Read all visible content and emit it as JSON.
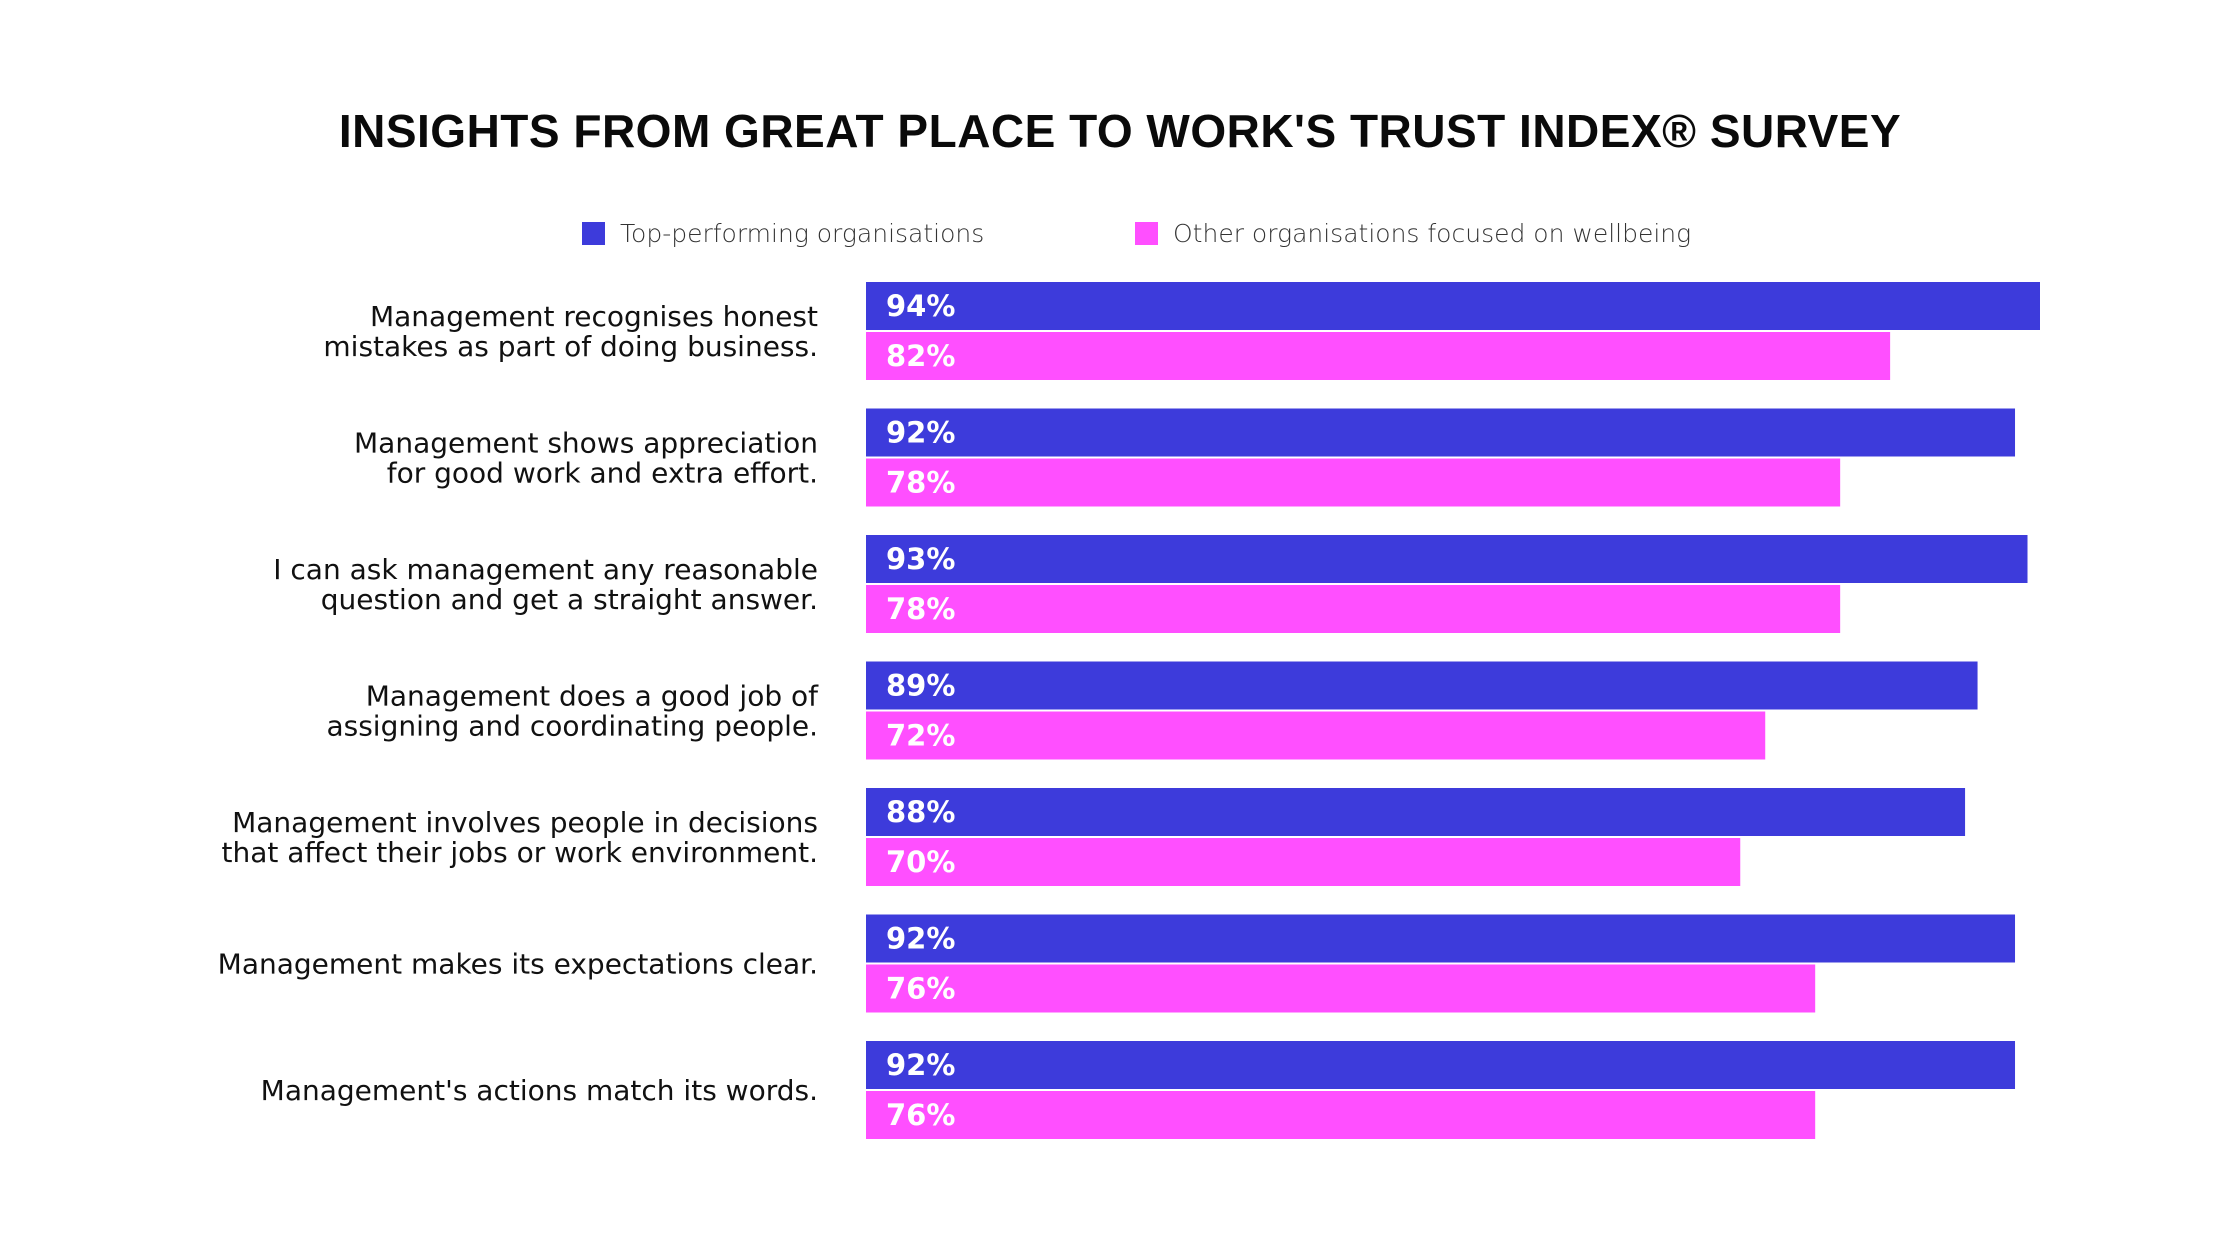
{
  "chart_data": {
    "type": "bar",
    "orientation": "horizontal",
    "title": "INSIGHTS FROM GREAT PLACE TO WORK'S TRUST INDEX® SURVEY",
    "xlabel": "",
    "ylabel": "",
    "xlim": [
      0,
      100
    ],
    "grid": false,
    "legend_position": "top-center",
    "categories": [
      [
        "Management recognises honest",
        "mistakes as part of doing business."
      ],
      [
        "Management shows appreciation",
        "for good work and extra effort."
      ],
      [
        "I can ask management any reasonable",
        "question and get a straight answer."
      ],
      [
        "Management does a good job of",
        "assigning and coordinating people."
      ],
      [
        "Management involves people in decisions",
        "that affect their jobs or work environment."
      ],
      [
        "Management makes its expectations clear."
      ],
      [
        "Management's actions match its words."
      ]
    ],
    "series": [
      {
        "name": "Top-performing organisations",
        "color": "#3d3bdb",
        "values": [
          94,
          92,
          93,
          89,
          88,
          92,
          92
        ],
        "labels": [
          "94%",
          "92%",
          "93%",
          "89%",
          "88%",
          "92%",
          "92%"
        ]
      },
      {
        "name": "Other organisations focused on wellbeing",
        "color": "#ff4fff",
        "values": [
          82,
          78,
          78,
          72,
          70,
          76,
          76
        ],
        "labels": [
          "82%",
          "78%",
          "78%",
          "72%",
          "70%",
          "76%",
          "76%"
        ]
      }
    ]
  }
}
